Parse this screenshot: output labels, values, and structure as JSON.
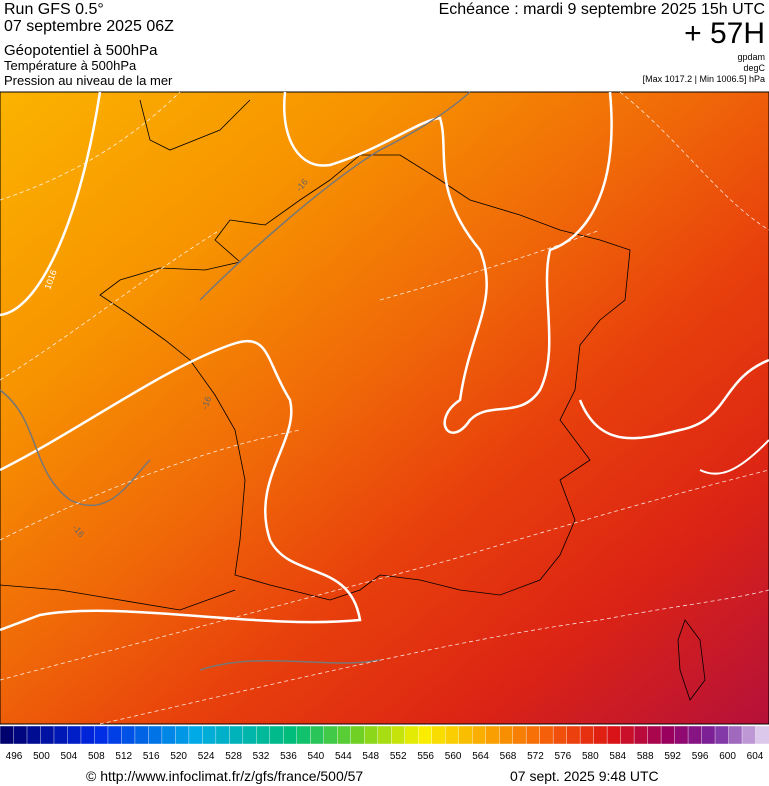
{
  "header": {
    "run": "Run GFS 0.5°",
    "date": "07 septembre 2025 06Z",
    "field1": "Géopotentiel à 500hPa",
    "field2": "Température à 500hPa",
    "field3": "Pression au niveau de la mer",
    "forecast": "Echéance : mardi 9 septembre 2025 15h UTC",
    "lead": "+ 57H",
    "unit1": "gpdam",
    "unit2": "degC",
    "pressure": "[Max 1017.2 | Min 1006.5] hPa"
  },
  "map": {
    "contour_labels": [
      "1016",
      "-16",
      "-16",
      "-16"
    ]
  },
  "colorbar": {
    "labels": [
      496,
      500,
      504,
      508,
      512,
      516,
      520,
      524,
      528,
      532,
      536,
      540,
      544,
      548,
      552,
      556,
      560,
      564,
      568,
      572,
      576,
      580,
      584,
      588,
      592,
      596,
      600,
      604
    ]
  },
  "footer": {
    "url": "© http://www.infoclimat.fr/z/gfs/france/500/57",
    "timestamp": "07 sept. 2025  9:48 UTC"
  }
}
